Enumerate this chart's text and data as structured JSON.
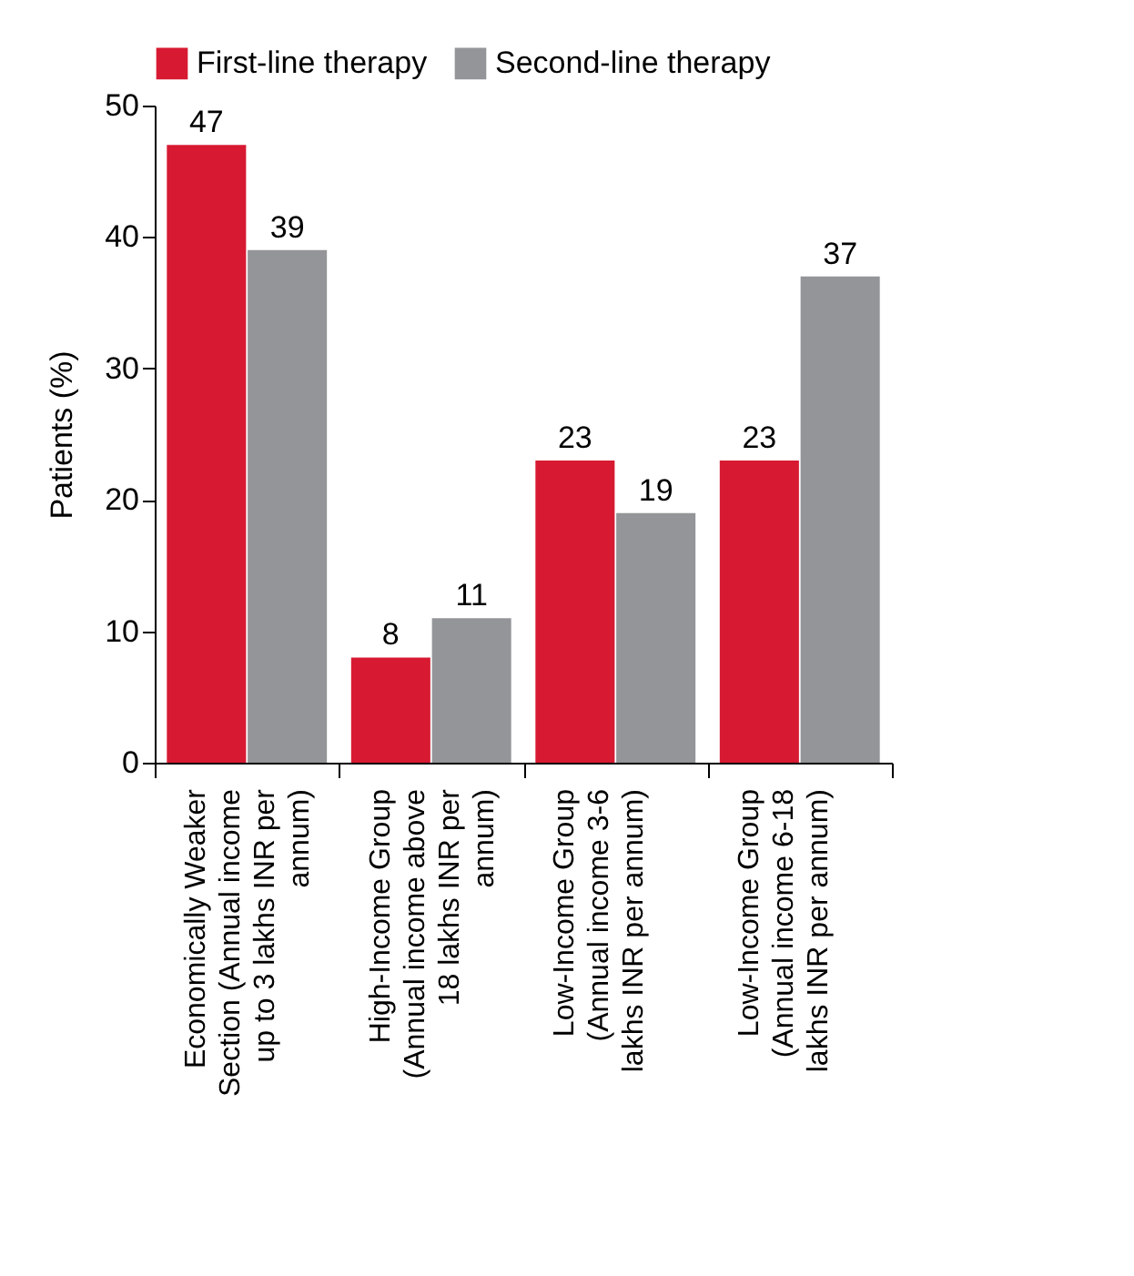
{
  "chart_data": {
    "type": "bar",
    "ylabel": "Patients (%)",
    "categories": [
      "Economically Weaker Section (Annual income up to 3 lakhs INR per annum)",
      "High-Income Group (Annual income above 18 lakhs INR per annum)",
      "Low-Income Group (Annual income 3-6 lakhs INR per annum)",
      "Low-Income Group (Annual income 6-18 lakhs INR per annum)"
    ],
    "series": [
      {
        "name": "First-line therapy",
        "color": "#d71a32",
        "values": [
          47,
          8,
          23,
          23
        ]
      },
      {
        "name": "Second-line therapy",
        "color": "#939598",
        "values": [
          39,
          11,
          19,
          37
        ]
      }
    ],
    "ylim": [
      0,
      50
    ],
    "yticks": [
      0,
      10,
      20,
      30,
      40,
      50
    ],
    "data_labels": true,
    "grid": false,
    "legend": "top"
  }
}
